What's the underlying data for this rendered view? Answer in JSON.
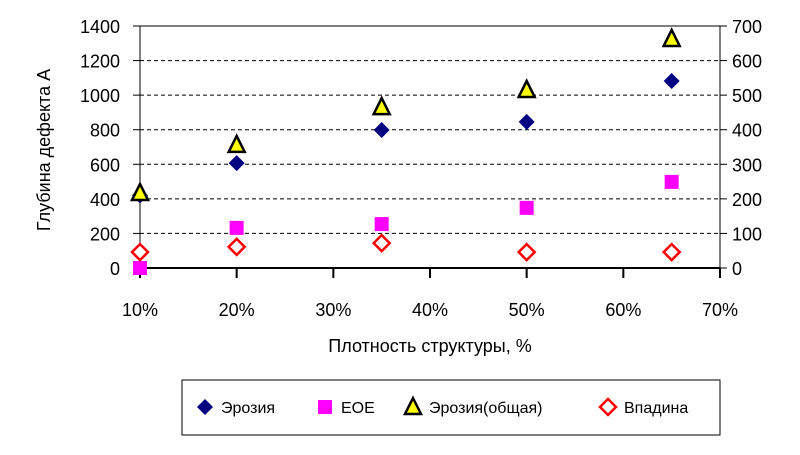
{
  "chart_data": {
    "type": "scatter",
    "xlabel": "Плотность структуры, %",
    "ylabel": "Глубина дефекта А",
    "xlim": [
      10,
      70
    ],
    "ylim": [
      0,
      1400
    ],
    "y2lim": [
      0,
      700
    ],
    "x_ticks": [
      "10%",
      "20%",
      "30%",
      "40%",
      "50%",
      "60%",
      "70%"
    ],
    "y_ticks": [
      "0",
      "200",
      "400",
      "600",
      "800",
      "1000",
      "1200",
      "1400"
    ],
    "y2_ticks": [
      "0",
      "100",
      "200",
      "300",
      "400",
      "500",
      "600",
      "700"
    ],
    "grid": "horizontal dashed",
    "legend": "bottom",
    "x": [
      10,
      20,
      35,
      50,
      65
    ],
    "series": [
      {
        "name": "Эрозия",
        "axis": "left",
        "marker": "diamond",
        "color": "#000080",
        "values": [
          420,
          607,
          798,
          845,
          1082
        ]
      },
      {
        "name": "EOE",
        "axis": "right",
        "marker": "square",
        "color": "#ff00ff",
        "values": [
          0,
          116,
          127,
          174,
          249
        ]
      },
      {
        "name": "Эрозия(общая)",
        "axis": "left",
        "marker": "triangle",
        "color": "#ffff00",
        "values": [
          434,
          712,
          931,
          1030,
          1325
        ]
      },
      {
        "name": "Впадина",
        "axis": "right",
        "marker": "open-diamond",
        "color": "#ff0000",
        "values": [
          46,
          61,
          72,
          46,
          46
        ]
      }
    ]
  }
}
